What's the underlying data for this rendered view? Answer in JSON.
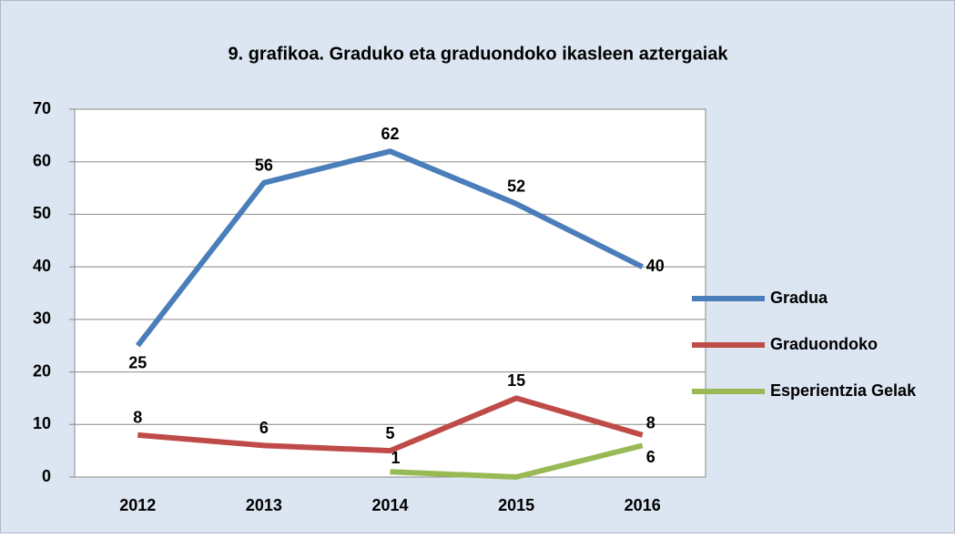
{
  "chart_data": {
    "type": "line",
    "title": "9. grafikoa. Graduko eta graduondoko ikasleen aztergaiak",
    "categories": [
      "2012",
      "2013",
      "2014",
      "2015",
      "2016"
    ],
    "series": [
      {
        "name": "Gradua",
        "color": "#4a7ebb",
        "values": [
          25,
          56,
          62,
          52,
          40
        ]
      },
      {
        "name": "Graduondoko",
        "color": "#be4b48",
        "values": [
          8,
          6,
          5,
          15,
          8
        ]
      },
      {
        "name": "Esperientzia Gelak",
        "color": "#98b954",
        "values": [
          null,
          null,
          1,
          0,
          6
        ],
        "value_labels": [
          null,
          null,
          "1",
          null,
          "6"
        ]
      }
    ],
    "ylim": [
      0,
      70
    ],
    "yticks": [
      0,
      10,
      20,
      30,
      40,
      50,
      60,
      70
    ],
    "grid": true,
    "legend": "right"
  }
}
